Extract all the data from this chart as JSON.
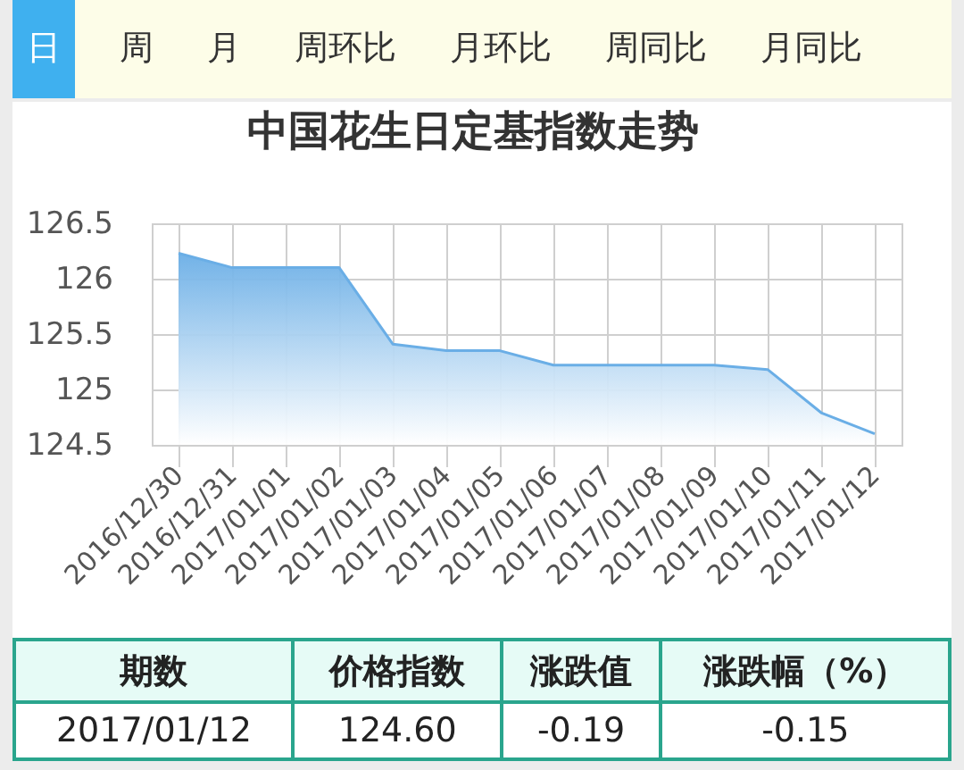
{
  "chart_data": {
    "type": "area",
    "title": "中国花生日定基指数走势",
    "categories": [
      "2016/12/30",
      "2016/12/31",
      "2017/01/01",
      "2017/01/02",
      "2017/01/03",
      "2017/01/04",
      "2017/01/05",
      "2017/01/06",
      "2017/01/07",
      "2017/01/08",
      "2017/01/09",
      "2017/01/10",
      "2017/01/11",
      "2017/01/12"
    ],
    "series": [
      {
        "color": "#6aaee6",
        "values": [
          126.23,
          126.1,
          126.1,
          126.1,
          125.41,
          125.35,
          125.35,
          125.22,
          125.22,
          125.22,
          125.22,
          125.18,
          124.79,
          124.6
        ]
      }
    ],
    "ylim": [
      124.5,
      126.5
    ],
    "yticks": [
      124.5,
      125,
      125.5,
      126,
      126.5
    ],
    "grid": true,
    "annotations": [
      "日",
      "周",
      "月",
      "周环比",
      "月环比",
      "周同比",
      "月同比",
      "期数",
      "价格指数",
      "涨跌值",
      "涨跌幅（%）",
      "2017/01/12",
      "124.60",
      "-0.19",
      "-0.15"
    ]
  }
}
